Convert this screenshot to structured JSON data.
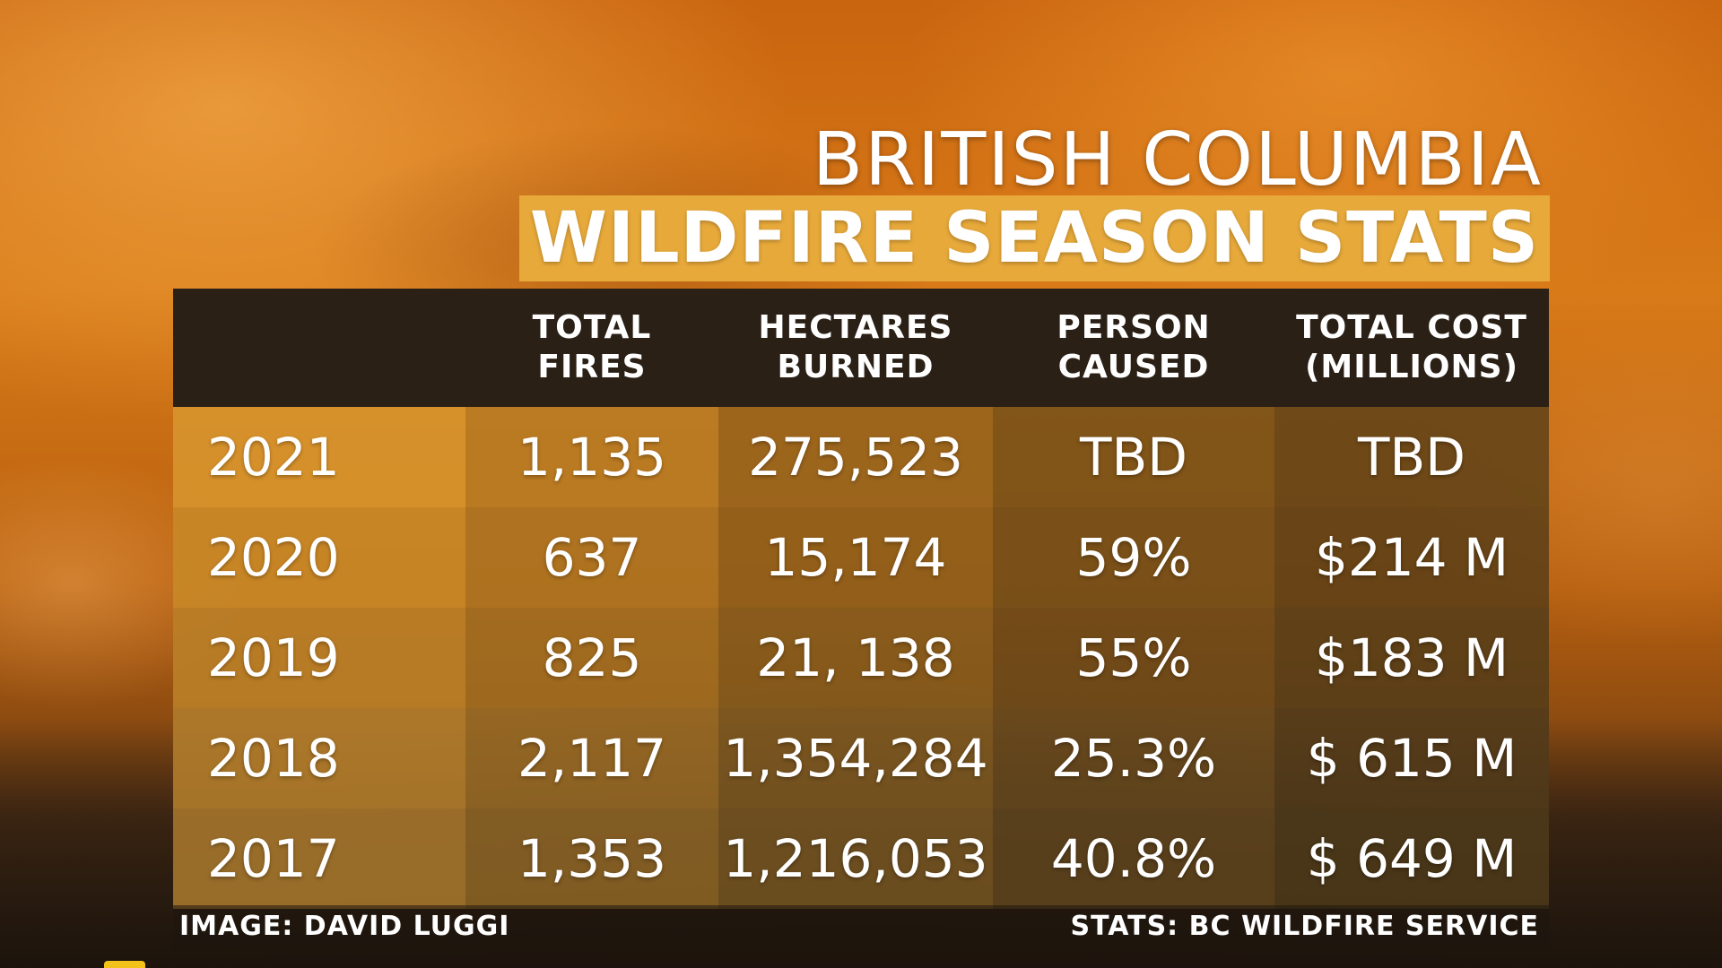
{
  "title": {
    "line1": "BRITISH COLUMBIA",
    "line2": "WILDFIRE SEASON STATS"
  },
  "table": {
    "headers": [
      [
        "",
        ""
      ],
      [
        "TOTAL",
        "FIRES"
      ],
      [
        "HECTARES",
        "BURNED"
      ],
      [
        "PERSON",
        "CAUSED"
      ],
      [
        "TOTAL COST",
        "(MILLIONS)"
      ]
    ],
    "rows": [
      [
        "2021",
        "1,135",
        "275,523",
        "TBD",
        "TBD"
      ],
      [
        "2020",
        "637",
        "15,174",
        "59%",
        "$214 M"
      ],
      [
        "2019",
        "825",
        "21, 138",
        "55%",
        "$183 M"
      ],
      [
        "2018",
        "2,117",
        "1,354,284",
        "25.3%",
        "$ 615 M"
      ],
      [
        "2017",
        "1,353",
        "1,216,053",
        "40.8%",
        "$ 649 M"
      ]
    ]
  },
  "credits": {
    "image": "IMAGE: DAVID LUGGI",
    "stats": "STATS: BC WILDFIRE SERVICE"
  },
  "colors": {
    "title_banner": "#e7a93a",
    "header_bg": "#2a2016",
    "text": "#ffffff"
  },
  "icons": {
    "channel_logo": "weather-network-logo-icon"
  }
}
